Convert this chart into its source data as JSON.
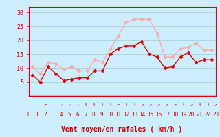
{
  "hours": [
    0,
    1,
    2,
    3,
    4,
    5,
    6,
    7,
    8,
    9,
    10,
    11,
    12,
    13,
    14,
    15,
    16,
    17,
    18,
    19,
    20,
    21,
    22,
    23
  ],
  "avg_wind": [
    7.5,
    5.0,
    10.5,
    8.0,
    5.5,
    6.0,
    6.5,
    6.5,
    9.0,
    9.0,
    15.0,
    17.0,
    18.0,
    18.0,
    19.5,
    15.0,
    14.0,
    10.0,
    10.5,
    14.0,
    15.5,
    12.0,
    13.0,
    13.0
  ],
  "gust_wind": [
    10.5,
    8.0,
    12.0,
    11.5,
    9.5,
    10.5,
    9.0,
    9.0,
    13.0,
    12.0,
    17.0,
    21.5,
    26.5,
    27.5,
    27.5,
    27.5,
    22.5,
    14.0,
    14.0,
    17.0,
    17.5,
    19.0,
    16.5,
    16.5
  ],
  "avg_color": "#dd0000",
  "gust_color": "#ffaaaa",
  "background_color": "#cceeff",
  "grid_color": "#aacccc",
  "xlabel": "Vent moyen/en rafales ( km/h )",
  "xlabel_color": "#cc0000",
  "tick_color": "#cc0000",
  "ylim": [
    0,
    32
  ],
  "yticks": [
    5,
    10,
    15,
    20,
    25,
    30
  ],
  "marker": "D",
  "markersize": 2.5,
  "arrow_chars": [
    "→",
    "→",
    "↗",
    "→",
    "→",
    "→",
    "→",
    "↑",
    "↑",
    "↑",
    "↑",
    "↗",
    "↑",
    "↑",
    "↗",
    "↗",
    "↗",
    "↗",
    "↗",
    "↑",
    "↗",
    "↑",
    "↑",
    "↗"
  ]
}
